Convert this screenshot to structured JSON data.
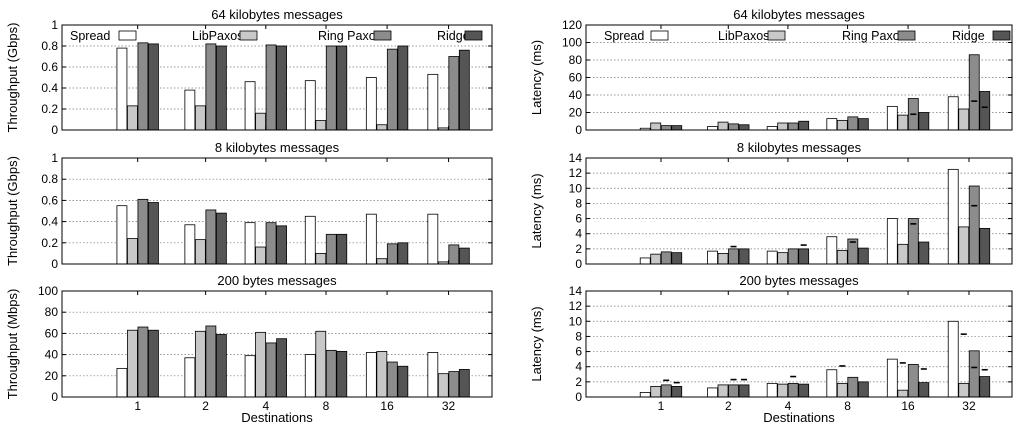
{
  "legend": {
    "labels": [
      "Spread",
      "LibPaxos",
      "Ring Paxos",
      "Ridge"
    ],
    "colors": [
      "#ffffff",
      "#c8c8c8",
      "#8c8c8c",
      "#555555"
    ]
  },
  "xlabel": "Destinations",
  "chart_data": [
    {
      "type": "bar",
      "title": "64 kilobytes messages",
      "ylabel": "Throughput (Gbps)",
      "ylim": [
        0,
        1
      ],
      "yticks": [
        "0",
        "0.2",
        "0.4",
        "0.6",
        "0.8",
        "1"
      ],
      "categories": [
        "1",
        "2",
        "4",
        "8",
        "16",
        "32"
      ],
      "series": [
        {
          "name": "Spread",
          "values": [
            0.78,
            0.38,
            0.46,
            0.47,
            0.5,
            0.53
          ]
        },
        {
          "name": "LibPaxos",
          "values": [
            0.23,
            0.23,
            0.16,
            0.09,
            0.05,
            0.02
          ]
        },
        {
          "name": "Ring Paxos",
          "values": [
            0.83,
            0.82,
            0.81,
            0.8,
            0.77,
            0.7
          ]
        },
        {
          "name": "Ridge",
          "values": [
            0.82,
            0.8,
            0.8,
            0.8,
            0.8,
            0.76
          ]
        }
      ],
      "grid": true,
      "legend": "top"
    },
    {
      "type": "bar",
      "title": "8 kilobytes messages",
      "ylabel": "Throughput (Gbps)",
      "ylim": [
        0,
        1
      ],
      "yticks": [
        "0",
        "0.2",
        "0.4",
        "0.6",
        "0.8",
        "1"
      ],
      "categories": [
        "1",
        "2",
        "4",
        "8",
        "16",
        "32"
      ],
      "series": [
        {
          "name": "Spread",
          "values": [
            0.55,
            0.37,
            0.39,
            0.45,
            0.47,
            0.47
          ]
        },
        {
          "name": "LibPaxos",
          "values": [
            0.24,
            0.23,
            0.16,
            0.1,
            0.05,
            0.02
          ]
        },
        {
          "name": "Ring Paxos",
          "values": [
            0.61,
            0.51,
            0.39,
            0.28,
            0.19,
            0.18
          ]
        },
        {
          "name": "Ridge",
          "values": [
            0.58,
            0.48,
            0.36,
            0.28,
            0.2,
            0.15
          ]
        }
      ],
      "grid": true
    },
    {
      "type": "bar",
      "title": "200 bytes messages",
      "ylabel": "Throughput (Mbps)",
      "xlabel": "Destinations",
      "ylim": [
        0,
        100
      ],
      "yticks": [
        "0",
        "20",
        "40",
        "60",
        "80",
        "100"
      ],
      "categories": [
        "1",
        "2",
        "4",
        "8",
        "16",
        "32"
      ],
      "series": [
        {
          "name": "Spread",
          "values": [
            27,
            37,
            39,
            40,
            42,
            42
          ]
        },
        {
          "name": "LibPaxos",
          "values": [
            63,
            62,
            61,
            62,
            43,
            22
          ]
        },
        {
          "name": "Ring Paxos",
          "values": [
            66,
            67,
            51,
            44,
            33,
            24
          ]
        },
        {
          "name": "Ridge",
          "values": [
            63,
            59,
            55,
            43,
            29,
            26
          ]
        }
      ],
      "grid": true
    },
    {
      "type": "bar",
      "title": "64 kilobytes messages",
      "ylabel": "Latency (ms)",
      "ylim": [
        0,
        120
      ],
      "yticks": [
        "0",
        "20",
        "40",
        "60",
        "80",
        "100",
        "120"
      ],
      "categories": [
        "1",
        "2",
        "4",
        "8",
        "16",
        "32"
      ],
      "series": [
        {
          "name": "Spread",
          "values": [
            2,
            4,
            4,
            13,
            27,
            38
          ]
        },
        {
          "name": "LibPaxos",
          "values": [
            8,
            9,
            8,
            11,
            17,
            24
          ]
        },
        {
          "name": "Ring Paxos",
          "values": [
            5,
            7,
            8,
            15,
            36,
            86
          ]
        },
        {
          "name": "Ridge",
          "values": [
            5,
            6,
            10,
            13,
            20,
            44
          ]
        }
      ],
      "markers": [
        [
          null,
          null,
          null,
          null
        ],
        [
          null,
          null,
          null,
          null
        ],
        [
          null,
          null,
          null,
          null
        ],
        [
          null,
          null,
          null,
          null
        ],
        [
          null,
          null,
          18,
          null
        ],
        [
          null,
          null,
          33,
          26
        ]
      ],
      "grid": true,
      "legend": "top"
    },
    {
      "type": "bar",
      "title": "8 kilobytes messages",
      "ylabel": "Latency (ms)",
      "ylim": [
        0,
        14
      ],
      "yticks": [
        "0",
        "2",
        "4",
        "6",
        "8",
        "10",
        "12",
        "14"
      ],
      "categories": [
        "1",
        "2",
        "4",
        "8",
        "16",
        "32"
      ],
      "series": [
        {
          "name": "Spread",
          "values": [
            0.8,
            1.7,
            1.7,
            3.6,
            6.0,
            12.5
          ]
        },
        {
          "name": "LibPaxos",
          "values": [
            1.3,
            1.4,
            1.5,
            1.8,
            2.6,
            4.9
          ]
        },
        {
          "name": "Ring Paxos",
          "values": [
            1.6,
            2.0,
            2.0,
            3.3,
            6.0,
            10.3
          ]
        },
        {
          "name": "Ridge",
          "values": [
            1.5,
            2.0,
            2.0,
            2.1,
            2.9,
            4.7
          ]
        }
      ],
      "markers": [
        [
          null,
          null,
          null,
          null
        ],
        [
          null,
          null,
          2.3,
          null
        ],
        [
          null,
          null,
          null,
          2.5
        ],
        [
          null,
          null,
          2.9,
          null
        ],
        [
          null,
          null,
          5.3,
          null
        ],
        [
          null,
          null,
          7.7,
          null
        ]
      ],
      "grid": true
    },
    {
      "type": "bar",
      "title": "200 bytes messages",
      "ylabel": "Latency (ms)",
      "xlabel": "Destinations",
      "ylim": [
        0,
        14
      ],
      "yticks": [
        "0",
        "2",
        "4",
        "6",
        "8",
        "10",
        "12",
        "14"
      ],
      "categories": [
        "1",
        "2",
        "4",
        "8",
        "16",
        "32"
      ],
      "series": [
        {
          "name": "Spread",
          "values": [
            0.6,
            1.2,
            1.8,
            3.6,
            5.0,
            10.0
          ]
        },
        {
          "name": "LibPaxos",
          "values": [
            1.4,
            1.6,
            1.7,
            1.8,
            0.9,
            1.8
          ]
        },
        {
          "name": "Ring Paxos",
          "values": [
            1.6,
            1.6,
            1.8,
            2.6,
            4.3,
            6.1
          ]
        },
        {
          "name": "Ridge",
          "values": [
            1.4,
            1.6,
            1.7,
            2.0,
            1.9,
            2.7
          ]
        }
      ],
      "markers": [
        [
          null,
          null,
          2.2,
          1.9
        ],
        [
          null,
          null,
          2.3,
          2.3
        ],
        [
          null,
          null,
          2.7,
          null
        ],
        [
          null,
          4.1,
          null,
          null
        ],
        [
          null,
          4.5,
          null,
          3.7
        ],
        [
          null,
          8.3,
          3.9,
          3.6
        ]
      ],
      "grid": true
    }
  ]
}
